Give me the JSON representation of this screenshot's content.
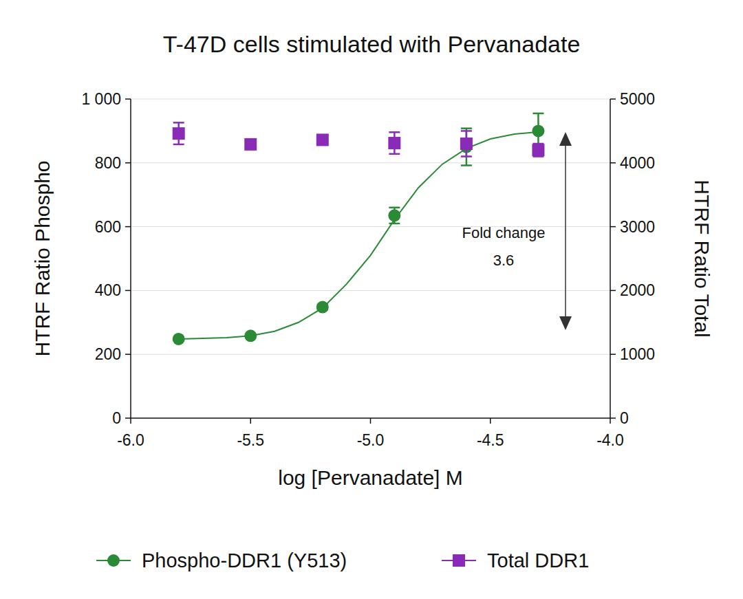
{
  "chart_data": {
    "type": "scatter",
    "title": "T-47D cells stimulated with Pervanadate",
    "x_label": "log [Pervanadate] M",
    "y_label": "HTRF Ratio Phospho",
    "y2_label": "HTRF Ratio Total",
    "xlim": [
      -6,
      -4
    ],
    "xticks": [
      {
        "value": -6,
        "label": "-6.0"
      },
      {
        "value": -5.5,
        "label": "-5.5"
      },
      {
        "value": -5,
        "label": "-5.0"
      },
      {
        "value": -4.5,
        "label": "-4.5"
      },
      {
        "value": -4,
        "label": "-4.0"
      }
    ],
    "ylim": [
      0,
      1000
    ],
    "yticks": [
      0,
      200,
      400,
      600,
      800,
      {
        "value": 1000,
        "label": "1 000"
      }
    ],
    "y2lim": [
      0,
      5000
    ],
    "y2ticks": [
      0,
      1000,
      2000,
      3000,
      4000,
      5000
    ],
    "grid": true,
    "legend": "bottom",
    "annotation": [
      "Fold change",
      "3.6"
    ],
    "series": [
      {
        "name": "Phospho-DDR1 (Y513)",
        "color": "#2a8a35",
        "marker": "circle",
        "line_style": "solid",
        "x": [
          -5.8,
          -5.5,
          -5.2,
          -4.9,
          -4.6,
          -4.3
        ],
        "values": [
          248,
          258,
          348,
          635,
          850,
          900
        ],
        "errors": [
          5,
          5,
          8,
          25,
          58,
          55
        ],
        "fit": {
          "x": [
            -5.8,
            -5.7,
            -5.6,
            -5.5,
            -5.4,
            -5.3,
            -5.2,
            -5.1,
            -5.0,
            -4.9,
            -4.8,
            -4.7,
            -4.6,
            -4.5,
            -4.4,
            -4.3
          ],
          "values": [
            248,
            250,
            252,
            258,
            272,
            300,
            345,
            420,
            510,
            622,
            722,
            796,
            845,
            875,
            890,
            897
          ]
        }
      },
      {
        "name": "Total DDR1",
        "color": "#8a2bb8",
        "marker": "square",
        "axis": "y2",
        "x": [
          -5.8,
          -5.5,
          -5.2,
          -4.9,
          -4.6,
          -4.3
        ],
        "values": [
          4460,
          4290,
          4360,
          4310,
          4300,
          4200
        ],
        "errors": [
          170,
          40,
          40,
          170,
          200,
          100
        ]
      }
    ]
  }
}
